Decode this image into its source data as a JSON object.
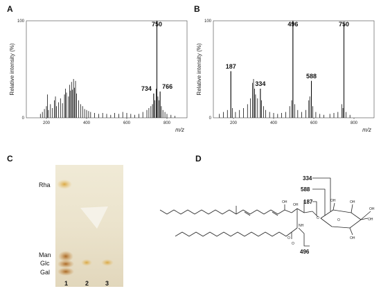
{
  "panels": {
    "a": "A",
    "b": "B",
    "c": "C",
    "d": "D"
  },
  "chart_data": [
    {
      "type": "bar",
      "title": "",
      "ylabel": "Relative intensity (%)",
      "xlabel": "m/z",
      "xlim": [
        100,
        900
      ],
      "ylim": [
        0,
        100
      ],
      "yticks": [
        0,
        100
      ],
      "xticks": [
        200,
        400,
        600,
        800
      ],
      "labeled_peaks": [
        {
          "mz": 734,
          "intensity": 25,
          "label": "734"
        },
        {
          "mz": 750,
          "intensity": 100,
          "label": "750"
        },
        {
          "mz": 766,
          "intensity": 27,
          "label": "766"
        }
      ],
      "peaks": [
        [
          170,
          4
        ],
        [
          180,
          6
        ],
        [
          190,
          9
        ],
        [
          200,
          12
        ],
        [
          205,
          24
        ],
        [
          210,
          8
        ],
        [
          220,
          14
        ],
        [
          230,
          10
        ],
        [
          240,
          18
        ],
        [
          245,
          22
        ],
        [
          250,
          12
        ],
        [
          260,
          16
        ],
        [
          270,
          20
        ],
        [
          280,
          15
        ],
        [
          290,
          24
        ],
        [
          295,
          30
        ],
        [
          300,
          26
        ],
        [
          310,
          22
        ],
        [
          315,
          34
        ],
        [
          320,
          28
        ],
        [
          325,
          37
        ],
        [
          330,
          29
        ],
        [
          335,
          40
        ],
        [
          340,
          31
        ],
        [
          345,
          38
        ],
        [
          350,
          25
        ],
        [
          360,
          18
        ],
        [
          370,
          14
        ],
        [
          380,
          12
        ],
        [
          390,
          9
        ],
        [
          400,
          8
        ],
        [
          410,
          7
        ],
        [
          420,
          6
        ],
        [
          440,
          5
        ],
        [
          460,
          4
        ],
        [
          480,
          5
        ],
        [
          500,
          4
        ],
        [
          520,
          3
        ],
        [
          540,
          5
        ],
        [
          560,
          4
        ],
        [
          580,
          6
        ],
        [
          600,
          5
        ],
        [
          620,
          4
        ],
        [
          640,
          3
        ],
        [
          660,
          4
        ],
        [
          680,
          6
        ],
        [
          700,
          8
        ],
        [
          710,
          10
        ],
        [
          720,
          12
        ],
        [
          728,
          14
        ],
        [
          734,
          25
        ],
        [
          740,
          18
        ],
        [
          746,
          30
        ],
        [
          750,
          100
        ],
        [
          755,
          22
        ],
        [
          760,
          18
        ],
        [
          766,
          27
        ],
        [
          772,
          12
        ],
        [
          780,
          8
        ],
        [
          790,
          6
        ],
        [
          800,
          4
        ],
        [
          820,
          3
        ],
        [
          840,
          2
        ]
      ]
    },
    {
      "type": "bar",
      "title": "",
      "ylabel": "Relative intensity (%)",
      "xlabel": "m/z",
      "xlim": [
        100,
        900
      ],
      "ylim": [
        0,
        100
      ],
      "yticks": [
        0,
        100
      ],
      "xticks": [
        200,
        400,
        600,
        800
      ],
      "labeled_peaks": [
        {
          "mz": 187,
          "intensity": 48,
          "label": "187"
        },
        {
          "mz": 334,
          "intensity": 30,
          "label": "334"
        },
        {
          "mz": 496,
          "intensity": 100,
          "label": "496"
        },
        {
          "mz": 588,
          "intensity": 38,
          "label": "588"
        },
        {
          "mz": 750,
          "intensity": 97,
          "label": "750"
        }
      ],
      "peaks": [
        [
          130,
          4
        ],
        [
          150,
          6
        ],
        [
          170,
          8
        ],
        [
          187,
          48
        ],
        [
          195,
          10
        ],
        [
          210,
          6
        ],
        [
          230,
          8
        ],
        [
          250,
          10
        ],
        [
          270,
          14
        ],
        [
          285,
          20
        ],
        [
          295,
          36
        ],
        [
          300,
          40
        ],
        [
          305,
          30
        ],
        [
          310,
          24
        ],
        [
          320,
          20
        ],
        [
          334,
          30
        ],
        [
          340,
          18
        ],
        [
          350,
          12
        ],
        [
          360,
          8
        ],
        [
          380,
          6
        ],
        [
          400,
          5
        ],
        [
          420,
          4
        ],
        [
          440,
          5
        ],
        [
          460,
          6
        ],
        [
          480,
          12
        ],
        [
          490,
          18
        ],
        [
          496,
          100
        ],
        [
          505,
          14
        ],
        [
          520,
          8
        ],
        [
          540,
          6
        ],
        [
          560,
          8
        ],
        [
          575,
          18
        ],
        [
          580,
          22
        ],
        [
          588,
          38
        ],
        [
          595,
          12
        ],
        [
          610,
          6
        ],
        [
          630,
          4
        ],
        [
          650,
          3
        ],
        [
          680,
          4
        ],
        [
          700,
          5
        ],
        [
          720,
          6
        ],
        [
          740,
          14
        ],
        [
          745,
          10
        ],
        [
          750,
          97
        ],
        [
          760,
          6
        ],
        [
          780,
          3
        ]
      ]
    }
  ],
  "tlc": {
    "standards": [
      "Rha",
      "Man",
      "Glc",
      "Gal"
    ],
    "lanes": [
      "1",
      "2",
      "3"
    ]
  },
  "structure": {
    "fragments": [
      "334",
      "588",
      "187",
      "496"
    ],
    "atoms": [
      "OH",
      "OH",
      "OH",
      "OH",
      "OH",
      "OH",
      "OH",
      "O",
      "O",
      "O",
      "NH",
      "O"
    ]
  }
}
